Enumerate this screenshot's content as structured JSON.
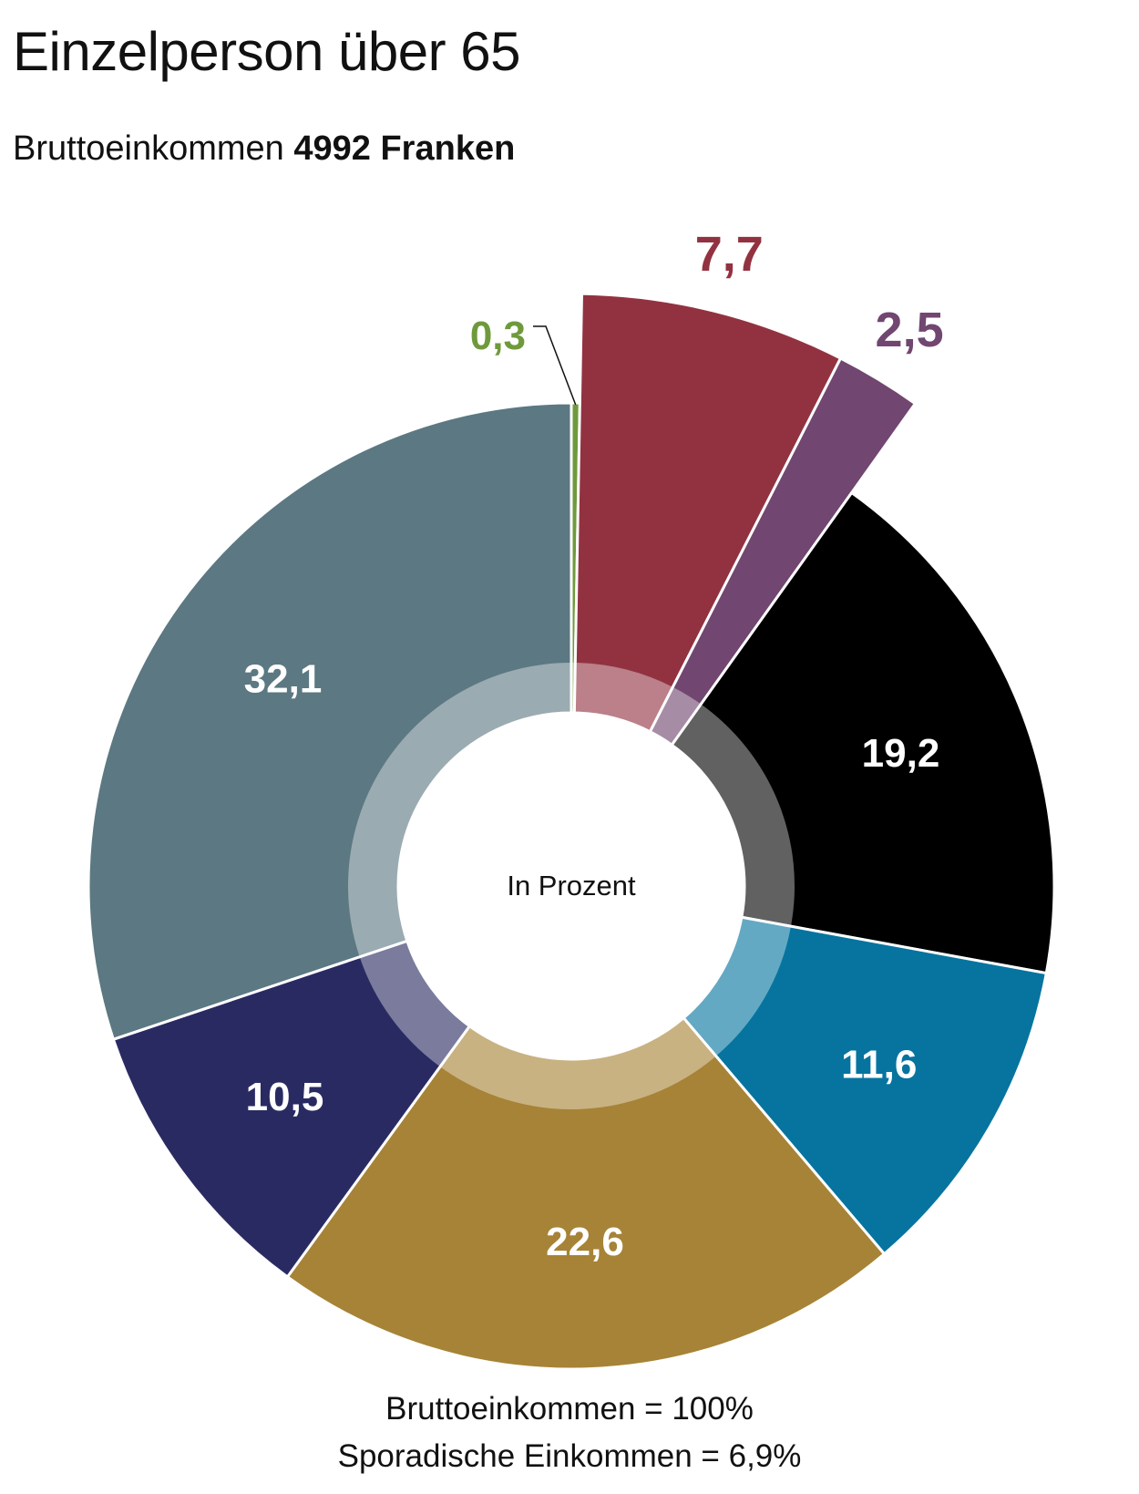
{
  "title": "Einzelperson über 65",
  "subtitle": {
    "prefix": "Bruttoeinkommen",
    "amount": "4992 Franken"
  },
  "center_label": "In Prozent",
  "footnotes": [
    "Bruttoeinkommen = 100%",
    "Sporadische Einkommen = 6,9%"
  ],
  "chart_data": {
    "type": "pie",
    "donut": true,
    "unit": "%",
    "slices": [
      {
        "label": "0,3",
        "value": 0.3,
        "color": "#6f9a3c",
        "exploded": false
      },
      {
        "label": "7,7",
        "value": 7.7,
        "color": "#923241",
        "exploded": true
      },
      {
        "label": "2,5",
        "value": 2.5,
        "color": "#714670",
        "exploded": true
      },
      {
        "label": "19,2",
        "value": 19.2,
        "color": "#000000",
        "exploded": false
      },
      {
        "label": "11,6",
        "value": 11.6,
        "color": "#06749f",
        "exploded": false
      },
      {
        "label": "22,6",
        "value": 22.6,
        "color": "#a68336",
        "exploded": false
      },
      {
        "label": "10,5",
        "value": 10.5,
        "color": "#2a2a63",
        "exploded": false
      },
      {
        "label": "32,1",
        "value": 32.1,
        "color": "#5c7882",
        "exploded": false
      }
    ]
  }
}
